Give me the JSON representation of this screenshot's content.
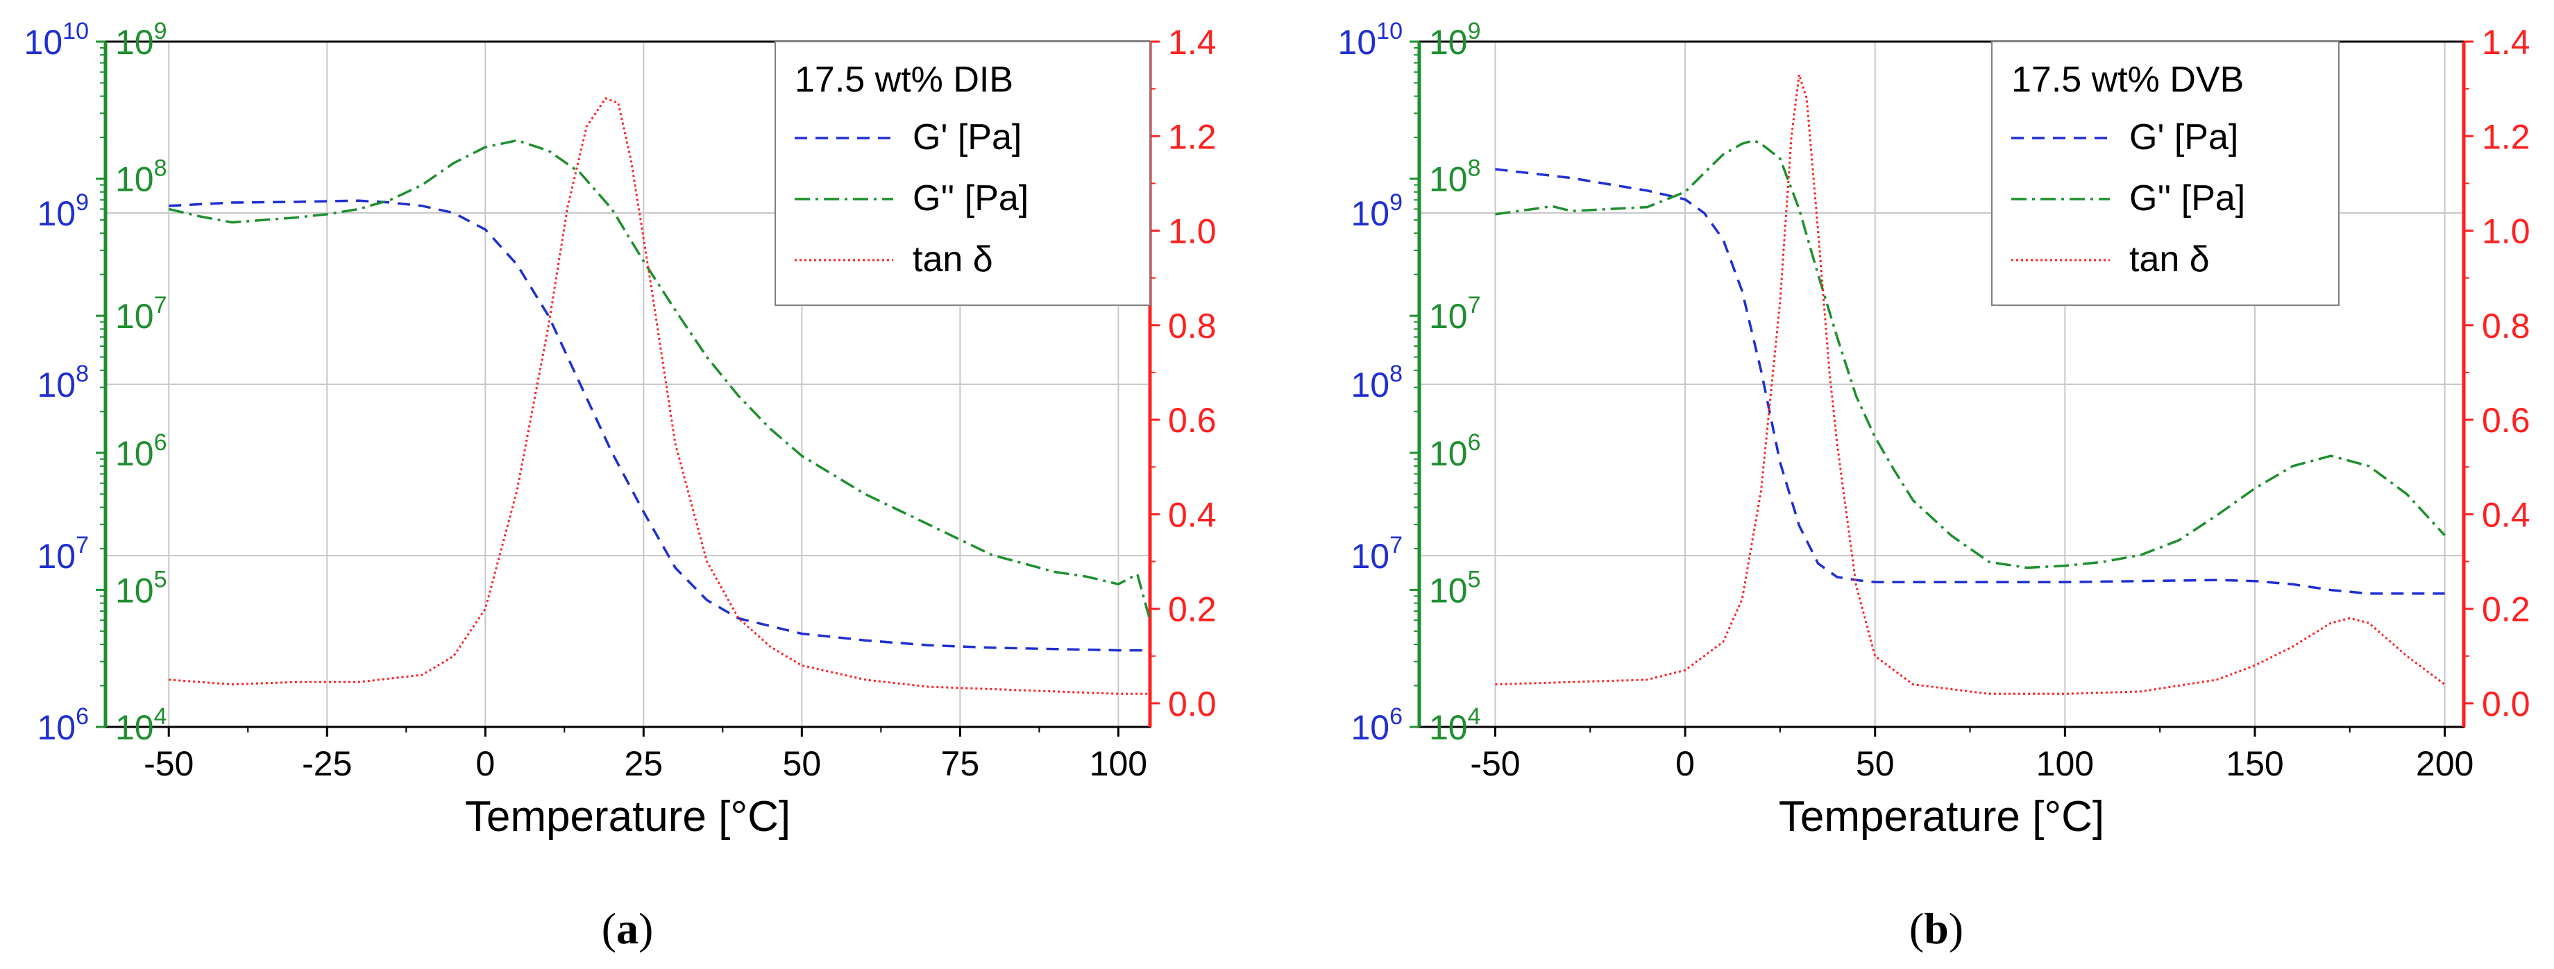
{
  "colors": {
    "gprime": "#1f2fd0",
    "gdouble": "#1f8f2f",
    "tan": "#ff2020",
    "axis": "#000000",
    "grid": "#c8c8c8",
    "legend_border": "#808080"
  },
  "chart_data": [
    {
      "id": "a",
      "type": "line",
      "caption_letter": "a",
      "xlabel": "Temperature [°C]",
      "xlim": [
        -60,
        105
      ],
      "xticks": [
        -50,
        -25,
        0,
        25,
        50,
        75,
        100
      ],
      "xtick_labels": [
        "-50",
        "-25",
        "0",
        "25",
        "50",
        "75",
        "100"
      ],
      "axes": {
        "gprime": {
          "lim_exp": [
            6,
            10
          ],
          "ticks": [
            "10⁶",
            "10⁷",
            "10⁸",
            "10⁹",
            "10¹⁰"
          ]
        },
        "gdouble": {
          "lim_exp": [
            4,
            9
          ],
          "ticks": [
            "10⁴",
            "10⁵",
            "10⁶",
            "10⁷",
            "10⁸",
            "10⁹"
          ]
        },
        "tan": {
          "lim": [
            -0.05,
            1.4
          ],
          "ticks": [
            "0.0",
            "0.2",
            "0.4",
            "0.6",
            "0.8",
            "1.0",
            "1.2",
            "1.4"
          ]
        }
      },
      "legend": {
        "title": "17.5 wt% DIB",
        "entries": [
          "G' [Pa]",
          "G'' [Pa]",
          "tan δ"
        ]
      },
      "series": [
        {
          "name": "G' [Pa]",
          "axis": "gprime",
          "x": [
            -50,
            -40,
            -30,
            -20,
            -15,
            -10,
            -5,
            0,
            5,
            10,
            15,
            20,
            25,
            30,
            35,
            40,
            50,
            60,
            70,
            80,
            90,
            100,
            105
          ],
          "y": [
            1100000000.0,
            1150000000.0,
            1160000000.0,
            1180000000.0,
            1150000000.0,
            1100000000.0,
            1000000000.0,
            800000000.0,
            500000000.0,
            250000000.0,
            100000000.0,
            40000000.0,
            18000000.0,
            8500000.0,
            5500000.0,
            4300000.0,
            3500000.0,
            3200000.0,
            3000000.0,
            2900000.0,
            2850000.0,
            2800000.0,
            2800000.0
          ]
        },
        {
          "name": "G'' [Pa]",
          "axis": "gdouble",
          "x": [
            -50,
            -45,
            -40,
            -35,
            -30,
            -25,
            -20,
            -15,
            -10,
            -5,
            0,
            5,
            10,
            15,
            20,
            25,
            30,
            35,
            40,
            45,
            50,
            60,
            70,
            80,
            90,
            95,
            100,
            103,
            105
          ],
          "y": [
            60000000.0,
            53000000.0,
            48000000.0,
            50000000.0,
            52000000.0,
            55000000.0,
            60000000.0,
            70000000.0,
            90000000.0,
            130000000.0,
            170000000.0,
            190000000.0,
            160000000.0,
            110000000.0,
            60000000.0,
            25000000.0,
            11000000.0,
            5000000.0,
            2600000.0,
            1500000.0,
            950000.0,
            500000.0,
            300000.0,
            180000.0,
            135000.0,
            125000.0,
            110000.0,
            130000.0,
            60000.0
          ]
        },
        {
          "name": "tan δ",
          "axis": "tan",
          "x": [
            -50,
            -40,
            -30,
            -20,
            -10,
            -5,
            0,
            5,
            10,
            13,
            16,
            19,
            21,
            23,
            26,
            30,
            35,
            40,
            45,
            50,
            60,
            70,
            80,
            90,
            100,
            105
          ],
          "y": [
            0.05,
            0.04,
            0.045,
            0.045,
            0.06,
            0.1,
            0.2,
            0.45,
            0.8,
            1.05,
            1.22,
            1.28,
            1.27,
            1.15,
            0.9,
            0.55,
            0.3,
            0.18,
            0.12,
            0.08,
            0.05,
            0.035,
            0.03,
            0.025,
            0.02,
            0.02
          ]
        }
      ]
    },
    {
      "id": "b",
      "type": "line",
      "caption_letter": "b",
      "xlabel": "Temperature [°C]",
      "xlim": [
        -70,
        205
      ],
      "xticks": [
        -50,
        0,
        50,
        100,
        150,
        200
      ],
      "xtick_labels": [
        "-50",
        "0",
        "50",
        "100",
        "150",
        "200"
      ],
      "axes": {
        "gprime": {
          "lim_exp": [
            6,
            10
          ],
          "ticks": [
            "10⁶",
            "10⁷",
            "10⁸",
            "10⁹",
            "10¹⁰"
          ]
        },
        "gdouble": {
          "lim_exp": [
            4,
            9
          ],
          "ticks": [
            "10⁴",
            "10⁵",
            "10⁶",
            "10⁷",
            "10⁸",
            "10⁹"
          ]
        },
        "tan": {
          "lim": [
            -0.05,
            1.4
          ],
          "ticks": [
            "0.0",
            "0.2",
            "0.4",
            "0.6",
            "0.8",
            "1.0",
            "1.2",
            "1.4"
          ]
        }
      },
      "legend": {
        "title": "17.5 wt% DVB",
        "entries": [
          "G' [Pa]",
          "G'' [Pa]",
          "tan δ"
        ]
      },
      "series": [
        {
          "name": "G' [Pa]",
          "axis": "gprime",
          "x": [
            -50,
            -30,
            -10,
            0,
            5,
            10,
            15,
            20,
            25,
            30,
            35,
            40,
            45,
            50,
            60,
            80,
            100,
            120,
            140,
            150,
            160,
            170,
            180,
            190,
            200
          ],
          "y": [
            1800000000.0,
            1600000000.0,
            1350000000.0,
            1200000000.0,
            1000000000.0,
            700000000.0,
            350000000.0,
            120000000.0,
            35000000.0,
            15000000.0,
            9000000.0,
            7500000.0,
            7200000.0,
            7000000.0,
            7000000.0,
            7000000.0,
            7000000.0,
            7100000.0,
            7200000.0,
            7100000.0,
            6800000.0,
            6300000.0,
            6000000.0,
            6000000.0,
            6000000.0
          ]
        },
        {
          "name": "G'' [Pa]",
          "axis": "gdouble",
          "x": [
            -50,
            -40,
            -35,
            -30,
            -20,
            -10,
            0,
            5,
            10,
            15,
            18,
            20,
            25,
            30,
            35,
            40,
            45,
            50,
            55,
            60,
            70,
            80,
            90,
            100,
            110,
            120,
            130,
            140,
            150,
            160,
            170,
            180,
            190,
            200
          ],
          "y": [
            55000000.0,
            60000000.0,
            63000000.0,
            58000000.0,
            60000000.0,
            62000000.0,
            80000000.0,
            110000000.0,
            150000000.0,
            180000000.0,
            190000000.0,
            180000000.0,
            140000000.0,
            60000000.0,
            20000000.0,
            7000000.0,
            2600000.0,
            1300000.0,
            750000.0,
            450000.0,
            250000.0,
            160000.0,
            145000.0,
            150000.0,
            160000.0,
            180000.0,
            230000.0,
            350000.0,
            550000.0,
            800000.0,
            950000.0,
            800000.0,
            500000.0,
            250000.0
          ]
        },
        {
          "name": "tan δ",
          "axis": "tan",
          "x": [
            -50,
            -30,
            -10,
            0,
            10,
            15,
            20,
            25,
            28,
            30,
            32,
            35,
            38,
            40,
            45,
            50,
            60,
            80,
            100,
            120,
            140,
            150,
            160,
            170,
            175,
            180,
            190,
            200
          ],
          "y": [
            0.04,
            0.045,
            0.05,
            0.07,
            0.13,
            0.22,
            0.45,
            0.85,
            1.2,
            1.33,
            1.28,
            1.0,
            0.7,
            0.55,
            0.25,
            0.1,
            0.04,
            0.02,
            0.02,
            0.025,
            0.05,
            0.08,
            0.12,
            0.17,
            0.18,
            0.17,
            0.1,
            0.04
          ]
        }
      ]
    }
  ]
}
